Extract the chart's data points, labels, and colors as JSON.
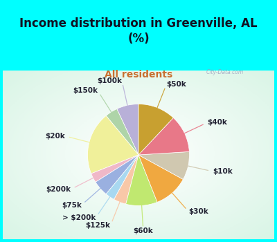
{
  "title": "Income distribution in Greenville, AL\n(%)",
  "subtitle": "All residents",
  "bg_color": "#00FFFF",
  "labels": [
    "$100k",
    "$150k",
    "$20k",
    "$200k",
    "$75k",
    "> $200k",
    "$125k",
    "$60k",
    "$30k",
    "$10k",
    "$40k",
    "$50k"
  ],
  "values": [
    7,
    4,
    20,
    3,
    5,
    3,
    4,
    10,
    11,
    9,
    12,
    12
  ],
  "colors": [
    "#b8b0d8",
    "#aed4a8",
    "#f0f09a",
    "#f0b8c8",
    "#9ab0e0",
    "#a8d8f0",
    "#f8c8a8",
    "#c0e870",
    "#f0a840",
    "#d0c8b0",
    "#e87888",
    "#c8a030"
  ],
  "startangle": 90,
  "label_fontsize": 7.5,
  "title_fontsize": 12,
  "subtitle_fontsize": 10,
  "title_color": "#111122",
  "subtitle_color": "#c87030",
  "watermark": "City-Data.com"
}
